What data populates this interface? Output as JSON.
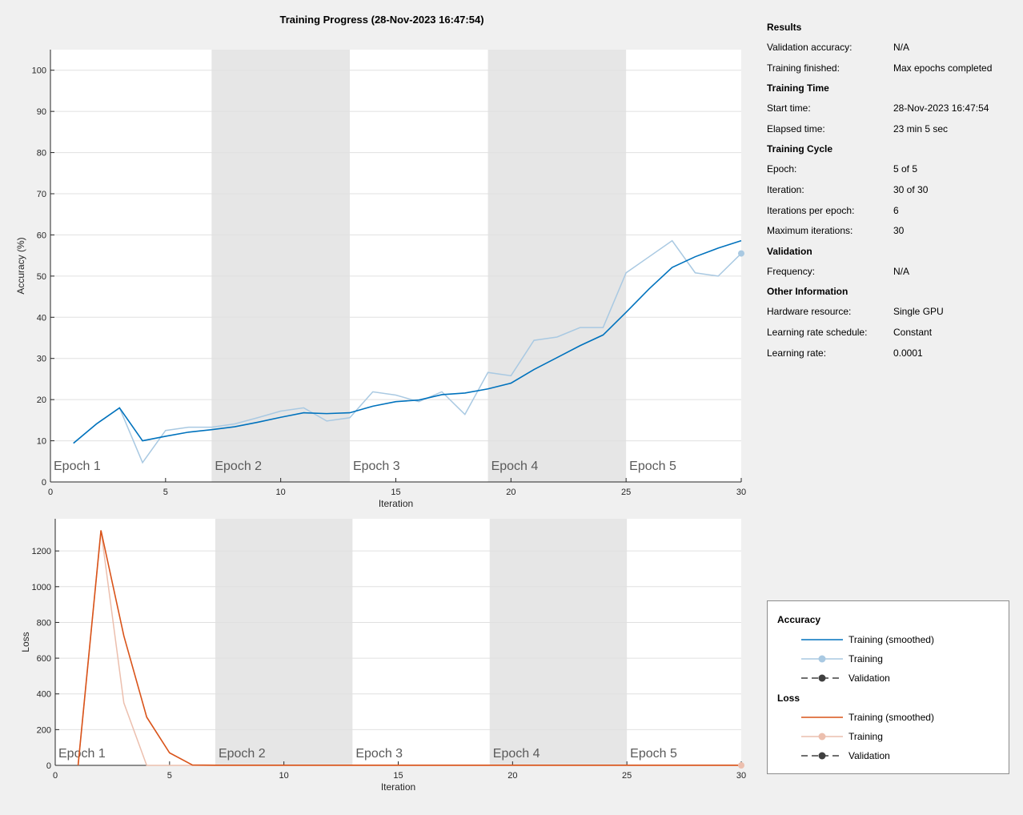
{
  "title": "Training Progress (28-Nov-2023 16:47:54)",
  "colors": {
    "acc_smoothed": "#0072bd",
    "acc_raw": "#a9c9e2",
    "loss_smoothed": "#d95319",
    "loss_raw": "#ecbfae",
    "validation": "#404040",
    "epoch_band": "#e6e6e6",
    "plot_bg": "#ffffff",
    "grid": "#e0e0e0"
  },
  "info": {
    "sections": [
      {
        "title": "Results",
        "rows": [
          {
            "key": "Validation accuracy:",
            "value": "N/A"
          },
          {
            "key": "Training finished:",
            "value": "Max epochs completed"
          }
        ]
      },
      {
        "title": "Training Time",
        "rows": [
          {
            "key": "Start time:",
            "value": "28-Nov-2023 16:47:54"
          },
          {
            "key": "Elapsed time:",
            "value": "23 min 5 sec"
          }
        ]
      },
      {
        "title": "Training Cycle",
        "rows": [
          {
            "key": "Epoch:",
            "value": "5 of 5"
          },
          {
            "key": "Iteration:",
            "value": "30 of 30"
          },
          {
            "key": "Iterations per epoch:",
            "value": "6"
          },
          {
            "key": "Maximum iterations:",
            "value": "30"
          }
        ]
      },
      {
        "title": "Validation",
        "rows": [
          {
            "key": "Frequency:",
            "value": "N/A"
          }
        ]
      },
      {
        "title": "Other Information",
        "rows": [
          {
            "key": "Hardware resource:",
            "value": "Single GPU"
          },
          {
            "key": "Learning rate schedule:",
            "value": "Constant"
          },
          {
            "key": "Learning rate:",
            "value": "0.0001"
          }
        ]
      }
    ]
  },
  "legend": {
    "accuracy_title": "Accuracy",
    "loss_title": "Loss",
    "smoothed_label": "Training (smoothed)",
    "training_label": "Training",
    "validation_label": "Validation"
  },
  "chart_data": [
    {
      "type": "line",
      "id": "accuracy",
      "title": "",
      "xlabel": "Iteration",
      "ylabel": "Accuracy (%)",
      "xlim": [
        0,
        30
      ],
      "ylim": [
        0,
        105
      ],
      "xticks": [
        0,
        5,
        10,
        15,
        20,
        25,
        30
      ],
      "yticks": [
        0,
        10,
        20,
        30,
        40,
        50,
        60,
        70,
        80,
        90,
        100
      ],
      "grid": true,
      "epochs": [
        {
          "label": "Epoch 1",
          "start": 0,
          "end": 7,
          "shaded": false
        },
        {
          "label": "Epoch 2",
          "start": 7,
          "end": 13,
          "shaded": true
        },
        {
          "label": "Epoch 3",
          "start": 13,
          "end": 19,
          "shaded": false
        },
        {
          "label": "Epoch 4",
          "start": 19,
          "end": 25,
          "shaded": true
        },
        {
          "label": "Epoch 5",
          "start": 25,
          "end": 30,
          "shaded": false
        }
      ],
      "x": [
        1,
        2,
        3,
        4,
        5,
        6,
        7,
        8,
        9,
        10,
        11,
        12,
        13,
        14,
        15,
        16,
        17,
        18,
        19,
        20,
        21,
        22,
        23,
        24,
        25,
        26,
        27,
        28,
        29,
        30
      ],
      "series": [
        {
          "name": "Training (smoothed)",
          "values": [
            9.4,
            14.1,
            18.0,
            10.0,
            11.1,
            12.1,
            12.7,
            13.4,
            14.5,
            15.7,
            16.8,
            16.6,
            16.8,
            18.4,
            19.5,
            19.9,
            21.2,
            21.6,
            22.6,
            24.0,
            27.3,
            30.2,
            33.1,
            35.7,
            41.2,
            46.9,
            52.1,
            54.7,
            56.8,
            58.6
          ]
        },
        {
          "name": "Training",
          "values": [
            9.4,
            14.1,
            18.0,
            4.7,
            12.5,
            13.3,
            13.3,
            14.1,
            15.6,
            17.2,
            18.0,
            14.8,
            15.6,
            21.9,
            21.1,
            19.5,
            21.9,
            16.4,
            26.6,
            25.8,
            34.4,
            35.2,
            37.5,
            37.5,
            50.8,
            54.7,
            58.6,
            50.8,
            50.0,
            55.5
          ]
        }
      ]
    },
    {
      "type": "line",
      "id": "loss",
      "title": "",
      "xlabel": "Iteration",
      "ylabel": "Loss",
      "xlim": [
        0,
        30
      ],
      "ylim": [
        0,
        1380
      ],
      "xticks": [
        0,
        5,
        10,
        15,
        20,
        25,
        30
      ],
      "yticks": [
        0,
        200,
        400,
        600,
        800,
        1000,
        1200
      ],
      "grid": true,
      "epochs": [
        {
          "label": "Epoch 1",
          "start": 0,
          "end": 7,
          "shaded": false
        },
        {
          "label": "Epoch 2",
          "start": 7,
          "end": 13,
          "shaded": true
        },
        {
          "label": "Epoch 3",
          "start": 13,
          "end": 19,
          "shaded": false
        },
        {
          "label": "Epoch 4",
          "start": 19,
          "end": 25,
          "shaded": true
        },
        {
          "label": "Epoch 5",
          "start": 25,
          "end": 30,
          "shaded": false
        }
      ],
      "x": [
        1,
        2,
        3,
        4,
        5,
        6,
        7,
        8,
        9,
        10,
        11,
        12,
        13,
        14,
        15,
        16,
        17,
        18,
        19,
        20,
        21,
        22,
        23,
        24,
        25,
        26,
        27,
        28,
        29,
        30
      ],
      "series": [
        {
          "name": "Training (smoothed)",
          "values": [
            0,
            1315,
            725,
            270,
            70,
            2,
            1,
            1,
            1,
            1,
            1,
            1,
            1,
            1,
            1,
            1,
            1,
            1,
            1,
            1,
            1,
            1,
            1,
            1,
            1,
            1,
            1,
            1,
            1,
            1
          ]
        },
        {
          "name": "Training",
          "values": [
            0,
            1315,
            350,
            0,
            0,
            0,
            0,
            0,
            0,
            0,
            0,
            0,
            0,
            0,
            0,
            0,
            0,
            0,
            0,
            0,
            0,
            0,
            0,
            0,
            0,
            0,
            0,
            0,
            0,
            0
          ]
        }
      ]
    }
  ]
}
